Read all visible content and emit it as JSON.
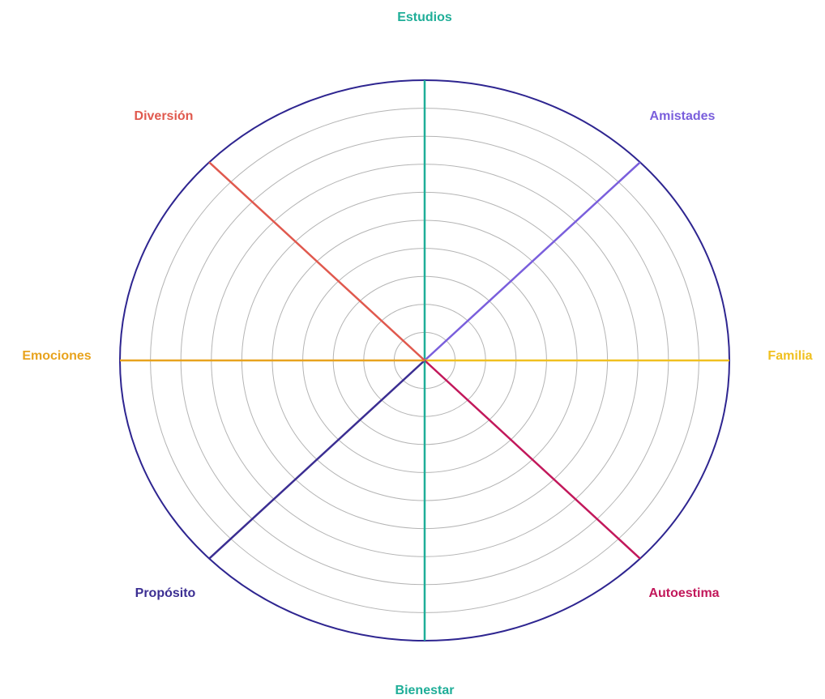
{
  "spokes": [
    {
      "label": "Estudios",
      "color": "#1fae98"
    },
    {
      "label": "Amistades",
      "color": "#7a5fdc"
    },
    {
      "label": "Familia",
      "color": "#f0c020"
    },
    {
      "label": "Autoestima",
      "color": "#c2185b"
    },
    {
      "label": "Bienestar",
      "color": "#1fae98"
    },
    {
      "label": "Propósito",
      "color": "#3b2e92"
    },
    {
      "label": "Emociones",
      "color": "#e8a31e"
    },
    {
      "label": "Diversión",
      "color": "#e0594e"
    }
  ]
}
